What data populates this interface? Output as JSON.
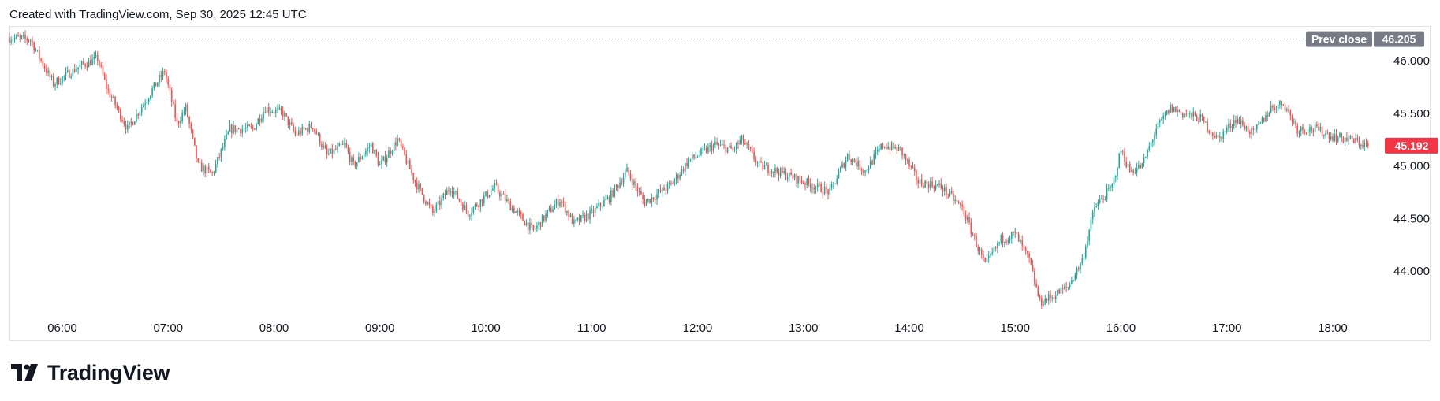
{
  "header": {
    "created_text": "Created with TradingView.com, Sep 30, 2025 12:45 UTC"
  },
  "footer": {
    "brand": "TradingView",
    "logo_icon": "tradingview-logo-icon"
  },
  "colors": {
    "up": "#26a69a",
    "down": "#ef5350",
    "last_tag": "#f23645",
    "prev_tag": "#787b86",
    "grid_dotted": "#9598a1"
  },
  "chart_data": {
    "type": "candlestick",
    "symbol": "",
    "title": "",
    "x_ticks": [
      "06:00",
      "07:00",
      "08:00",
      "09:00",
      "10:00",
      "11:00",
      "12:00",
      "13:00",
      "14:00",
      "15:00",
      "16:00",
      "17:00",
      "18:00"
    ],
    "y_ticks": [
      "46.000",
      "45.500",
      "45.000",
      "44.500",
      "44.000"
    ],
    "ylim": [
      43.65,
      46.3
    ],
    "prev_close": {
      "label": "Prev close",
      "value": "46.205"
    },
    "last_price": "45.192",
    "time_range": [
      "05:30",
      "18:20"
    ],
    "bar_interval_minutes": 1,
    "path_points": [
      {
        "t": "05:30",
        "p": 46.22
      },
      {
        "t": "05:42",
        "p": 46.2
      },
      {
        "t": "05:48",
        "p": 46.0
      },
      {
        "t": "05:55",
        "p": 45.78
      },
      {
        "t": "06:10",
        "p": 45.95
      },
      {
        "t": "06:20",
        "p": 46.02
      },
      {
        "t": "06:25",
        "p": 45.75
      },
      {
        "t": "06:37",
        "p": 45.35
      },
      {
        "t": "06:52",
        "p": 45.75
      },
      {
        "t": "06:58",
        "p": 45.9
      },
      {
        "t": "07:05",
        "p": 45.4
      },
      {
        "t": "07:10",
        "p": 45.55
      },
      {
        "t": "07:17",
        "p": 45.0
      },
      {
        "t": "07:25",
        "p": 44.92
      },
      {
        "t": "07:35",
        "p": 45.35
      },
      {
        "t": "07:48",
        "p": 45.35
      },
      {
        "t": "07:55",
        "p": 45.55
      },
      {
        "t": "08:05",
        "p": 45.5
      },
      {
        "t": "08:12",
        "p": 45.3
      },
      {
        "t": "08:22",
        "p": 45.38
      },
      {
        "t": "08:30",
        "p": 45.1
      },
      {
        "t": "08:40",
        "p": 45.2
      },
      {
        "t": "08:45",
        "p": 45.0
      },
      {
        "t": "08:55",
        "p": 45.2
      },
      {
        "t": "09:00",
        "p": 45.0
      },
      {
        "t": "09:10",
        "p": 45.25
      },
      {
        "t": "09:20",
        "p": 44.85
      },
      {
        "t": "09:30",
        "p": 44.55
      },
      {
        "t": "09:40",
        "p": 44.8
      },
      {
        "t": "09:50",
        "p": 44.55
      },
      {
        "t": "10:05",
        "p": 44.8
      },
      {
        "t": "10:15",
        "p": 44.6
      },
      {
        "t": "10:27",
        "p": 44.38
      },
      {
        "t": "10:35",
        "p": 44.55
      },
      {
        "t": "10:42",
        "p": 44.68
      },
      {
        "t": "10:50",
        "p": 44.45
      },
      {
        "t": "11:00",
        "p": 44.55
      },
      {
        "t": "11:10",
        "p": 44.7
      },
      {
        "t": "11:20",
        "p": 44.95
      },
      {
        "t": "11:30",
        "p": 44.65
      },
      {
        "t": "11:45",
        "p": 44.82
      },
      {
        "t": "11:55",
        "p": 45.05
      },
      {
        "t": "12:10",
        "p": 45.2
      },
      {
        "t": "12:20",
        "p": 45.15
      },
      {
        "t": "12:25",
        "p": 45.25
      },
      {
        "t": "12:35",
        "p": 45.0
      },
      {
        "t": "12:45",
        "p": 44.95
      },
      {
        "t": "13:00",
        "p": 44.85
      },
      {
        "t": "13:15",
        "p": 44.75
      },
      {
        "t": "13:25",
        "p": 45.1
      },
      {
        "t": "13:35",
        "p": 44.95
      },
      {
        "t": "13:45",
        "p": 45.2
      },
      {
        "t": "13:55",
        "p": 45.15
      },
      {
        "t": "14:05",
        "p": 44.85
      },
      {
        "t": "14:18",
        "p": 44.8
      },
      {
        "t": "14:30",
        "p": 44.6
      },
      {
        "t": "14:43",
        "p": 44.05
      },
      {
        "t": "14:52",
        "p": 44.3
      },
      {
        "t": "15:00",
        "p": 44.35
      },
      {
        "t": "15:08",
        "p": 44.1
      },
      {
        "t": "15:14",
        "p": 43.7
      },
      {
        "t": "15:20",
        "p": 43.75
      },
      {
        "t": "15:30",
        "p": 43.85
      },
      {
        "t": "15:38",
        "p": 44.1
      },
      {
        "t": "15:45",
        "p": 44.6
      },
      {
        "t": "15:55",
        "p": 44.8
      },
      {
        "t": "16:00",
        "p": 45.15
      },
      {
        "t": "16:05",
        "p": 44.95
      },
      {
        "t": "16:12",
        "p": 45.0
      },
      {
        "t": "16:20",
        "p": 45.35
      },
      {
        "t": "16:28",
        "p": 45.55
      },
      {
        "t": "16:35",
        "p": 45.5
      },
      {
        "t": "16:45",
        "p": 45.45
      },
      {
        "t": "16:55",
        "p": 45.25
      },
      {
        "t": "17:05",
        "p": 45.45
      },
      {
        "t": "17:15",
        "p": 45.3
      },
      {
        "t": "17:25",
        "p": 45.55
      },
      {
        "t": "17:32",
        "p": 45.6
      },
      {
        "t": "17:40",
        "p": 45.35
      },
      {
        "t": "17:50",
        "p": 45.35
      },
      {
        "t": "18:00",
        "p": 45.28
      },
      {
        "t": "18:10",
        "p": 45.25
      },
      {
        "t": "18:20",
        "p": 45.19
      }
    ]
  }
}
